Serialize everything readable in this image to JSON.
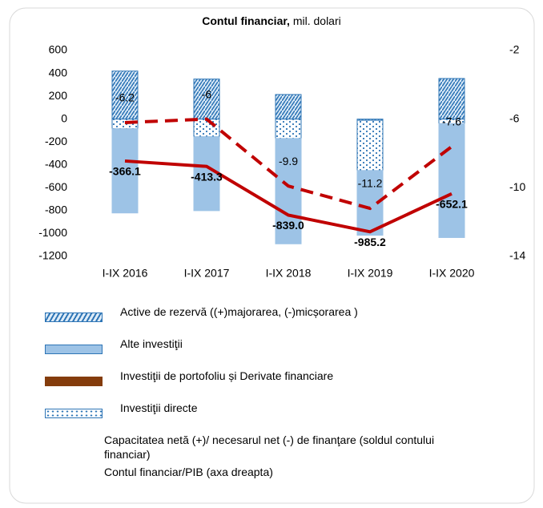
{
  "chart_data": {
    "type": "bar",
    "title": "Contul financiar,",
    "subtitle": "mil. dolari",
    "categories": [
      "I-IX 2016",
      "I-IX 2017",
      "I-IX 2018",
      "I-IX 2019",
      "I-IX 2020"
    ],
    "ylim": [
      -1200,
      600
    ],
    "yticks": [
      600,
      400,
      200,
      0,
      -200,
      -400,
      -600,
      -800,
      -1000,
      -1200
    ],
    "y2lim": [
      -14,
      -2
    ],
    "y2ticks": [
      -2,
      -6,
      -10,
      -14
    ],
    "series": [
      {
        "name": "Active de rezervă ((+)majorarea, (-)micșorarea )",
        "type": "bar",
        "pattern": "hatch",
        "color": "#2e75b6",
        "values": [
          420,
          350,
          215,
          -10,
          355
        ]
      },
      {
        "name": "Alte investiţii",
        "type": "bar",
        "pattern": "solid",
        "color": "#9dc3e6",
        "values": [
          -735,
          -645,
          -920,
          -565,
          -995
        ]
      },
      {
        "name": "Investiţii de portofoliu și Derivate financiare",
        "type": "bar",
        "pattern": "solid",
        "color": "#843c0c",
        "values": [
          null,
          null,
          null,
          null,
          null
        ]
      },
      {
        "name": "Investiţii directe",
        "type": "bar",
        "pattern": "dots",
        "color": "#2e75b6",
        "values": [
          -85,
          -155,
          -170,
          -440,
          -40
        ]
      },
      {
        "name": "Capacitatea netă (+)/ necesarul net (-) de finanţare (soldul contului financiar)",
        "type": "line",
        "style": "solid",
        "color": "#c00000",
        "values": [
          -366.1,
          -413.3,
          -839.0,
          -985.2,
          -652.1
        ],
        "value_labels": [
          "-366.1",
          "-413.3",
          "-839.0",
          "-985.2",
          "-652.1"
        ]
      },
      {
        "name": "Contul financiar/PIB (axa dreapta)",
        "type": "line",
        "style": "dashed",
        "axis": "y2",
        "color": "#c00000",
        "values": [
          -6.2,
          -6.0,
          -9.9,
          -11.2,
          -7.6
        ]
      }
    ]
  }
}
